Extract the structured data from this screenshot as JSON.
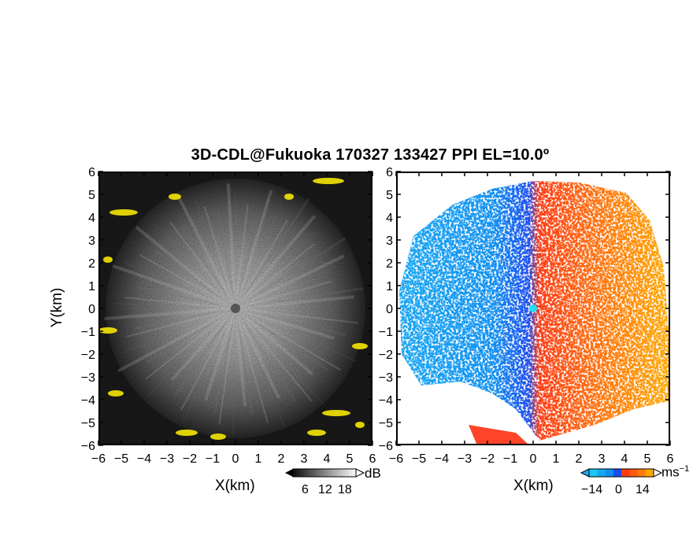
{
  "title": "3D-CDL@Fukuoka 170327 133427 PPI EL=10.0º",
  "chart_data": [
    {
      "type": "heatmap",
      "panel": "left",
      "quantity": "received signal intensity (SNR)",
      "xlabel": "X(km)",
      "ylabel": "Y(km)",
      "xlim": [
        -6,
        6
      ],
      "ylim": [
        -6,
        6
      ],
      "x_ticks": [
        "−6",
        "−5",
        "−4",
        "−3",
        "−2",
        "−1",
        "0",
        "1",
        "2",
        "3",
        "4",
        "5",
        "6"
      ],
      "y_ticks": [
        "6",
        "5",
        "4",
        "3",
        "2",
        "1",
        "0",
        "−1",
        "−2",
        "−3",
        "−4",
        "−5",
        "−6"
      ],
      "colormap": "grayscale with yellow highlights",
      "colorbar": {
        "unit": "dB",
        "ticks": [
          "6",
          "12",
          "18"
        ],
        "range": [
          3,
          21
        ]
      }
    },
    {
      "type": "heatmap",
      "panel": "right",
      "quantity": "Doppler radial velocity",
      "xlabel": "X(km)",
      "xlim": [
        -6,
        6
      ],
      "ylim": [
        -6,
        6
      ],
      "x_ticks": [
        "−6",
        "−5",
        "−4",
        "−3",
        "−2",
        "−1",
        "0",
        "1",
        "2",
        "3",
        "4",
        "5",
        "6"
      ],
      "y_ticks": [
        "6",
        "5",
        "4",
        "3",
        "2",
        "1",
        "0",
        "−1",
        "−2",
        "−3",
        "−4",
        "−5",
        "−6"
      ],
      "colormap": "blue-cyan-red-orange",
      "colorbar": {
        "unit": "ms",
        "unit_exponent": "−1",
        "ticks": [
          "−14",
          "0",
          "14"
        ],
        "range": [
          -21,
          21
        ]
      },
      "colors": {
        "negative": "#1e6cff",
        "near_zero": "#19c8f0",
        "positive": "#ff4a10",
        "high": "#ffb000"
      }
    }
  ]
}
